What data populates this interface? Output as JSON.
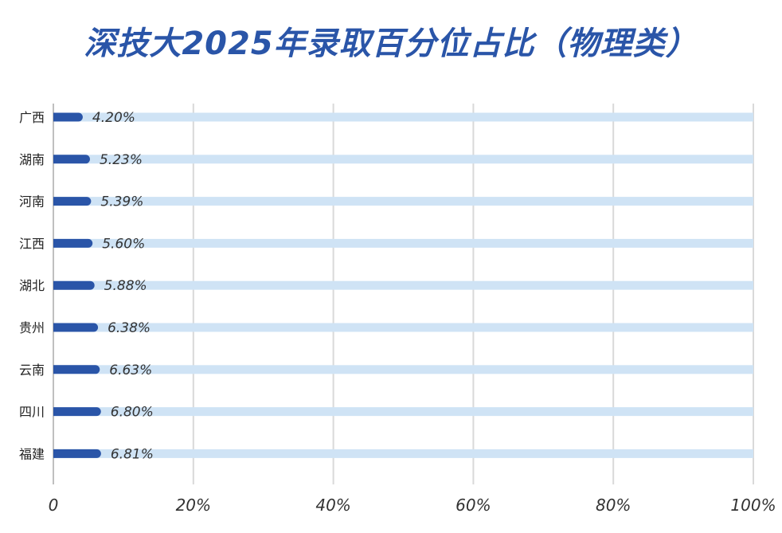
{
  "chart_data": {
    "type": "bar",
    "orientation": "horizontal",
    "title": "深技大2025年录取百分位占比（物理类）",
    "xlabel": "",
    "ylabel": "",
    "categories": [
      "广西",
      "湖南",
      "河南",
      "江西",
      "湖北",
      "贵州",
      "云南",
      "四川",
      "福建"
    ],
    "values": [
      4.2,
      5.23,
      5.39,
      5.6,
      5.88,
      6.38,
      6.63,
      6.8,
      6.81
    ],
    "value_labels": [
      "4.20%",
      "5.23%",
      "5.39%",
      "5.60%",
      "5.88%",
      "6.38%",
      "6.63%",
      "6.80%",
      "6.81%"
    ],
    "xlim": [
      0,
      100
    ],
    "x_ticks": [
      0,
      20,
      40,
      60,
      80,
      100
    ],
    "x_tick_labels": [
      "0",
      "20%",
      "40%",
      "60%",
      "80%",
      "100%"
    ],
    "grid": true,
    "legend": "none",
    "colors": {
      "bar": "#2a55a8",
      "track": "#cfe3f5",
      "grid": "#d9d9d9",
      "axis": "#bfbfbf",
      "title": "#2a55a8"
    }
  }
}
